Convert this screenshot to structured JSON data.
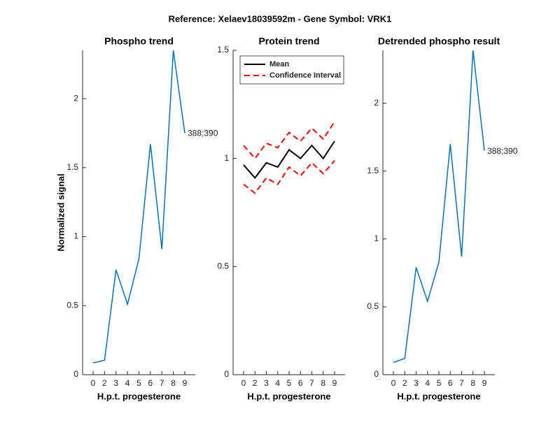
{
  "title": "Reference:  Xelaev18039592m - Gene Symbol:  VRK1",
  "chart_data": [
    {
      "type": "line",
      "title": "Phospho trend",
      "xlabel": "H.p.t. progesterone",
      "ylabel": "Normalized signal",
      "categories": [
        "0",
        "2",
        "3",
        "4",
        "5",
        "6",
        "7",
        "8",
        "9"
      ],
      "series": [
        {
          "color": "#0072bd",
          "values": [
            0.085,
            0.105,
            0.76,
            0.51,
            0.84,
            1.67,
            0.91,
            2.35,
            1.75
          ]
        }
      ],
      "annotation": "388;390",
      "ylim": [
        0,
        2.35
      ],
      "yticks": [
        0,
        0.5,
        1,
        1.5,
        2
      ]
    },
    {
      "type": "line",
      "title": "Protein trend",
      "xlabel": "H.p.t. progesterone",
      "categories": [
        "0",
        "2",
        "3",
        "4",
        "5",
        "6",
        "7",
        "8",
        "9"
      ],
      "series": [
        {
          "name": "Mean",
          "color": "#000000",
          "dashed": false,
          "values": [
            0.97,
            0.91,
            0.98,
            0.96,
            1.04,
            1.0,
            1.06,
            1.0,
            1.08
          ]
        },
        {
          "name": "Confidence Interval",
          "color": "#ff0000",
          "dashed": true,
          "values": [
            1.06,
            1.0,
            1.07,
            1.05,
            1.12,
            1.08,
            1.14,
            1.09,
            1.17
          ]
        },
        {
          "color": "#ff0000",
          "dashed": true,
          "values": [
            0.88,
            0.84,
            0.91,
            0.88,
            0.96,
            0.92,
            0.98,
            0.93,
            0.99
          ]
        }
      ],
      "legend": "upper left",
      "ylim": [
        0,
        1.5
      ],
      "yticks": [
        0,
        0.5,
        1,
        1.5
      ]
    },
    {
      "type": "line",
      "title": "Detrended phospho result",
      "xlabel": "H.p.t. progesterone",
      "categories": [
        "0",
        "2",
        "3",
        "4",
        "5",
        "6",
        "7",
        "8",
        "9"
      ],
      "series": [
        {
          "color": "#0072bd",
          "values": [
            0.09,
            0.12,
            0.79,
            0.54,
            0.83,
            1.7,
            0.87,
            2.39,
            1.65
          ]
        }
      ],
      "annotation": "388;390",
      "ylim": [
        0,
        2.39
      ],
      "yticks": [
        0,
        0.5,
        1,
        1.5,
        2
      ]
    }
  ]
}
